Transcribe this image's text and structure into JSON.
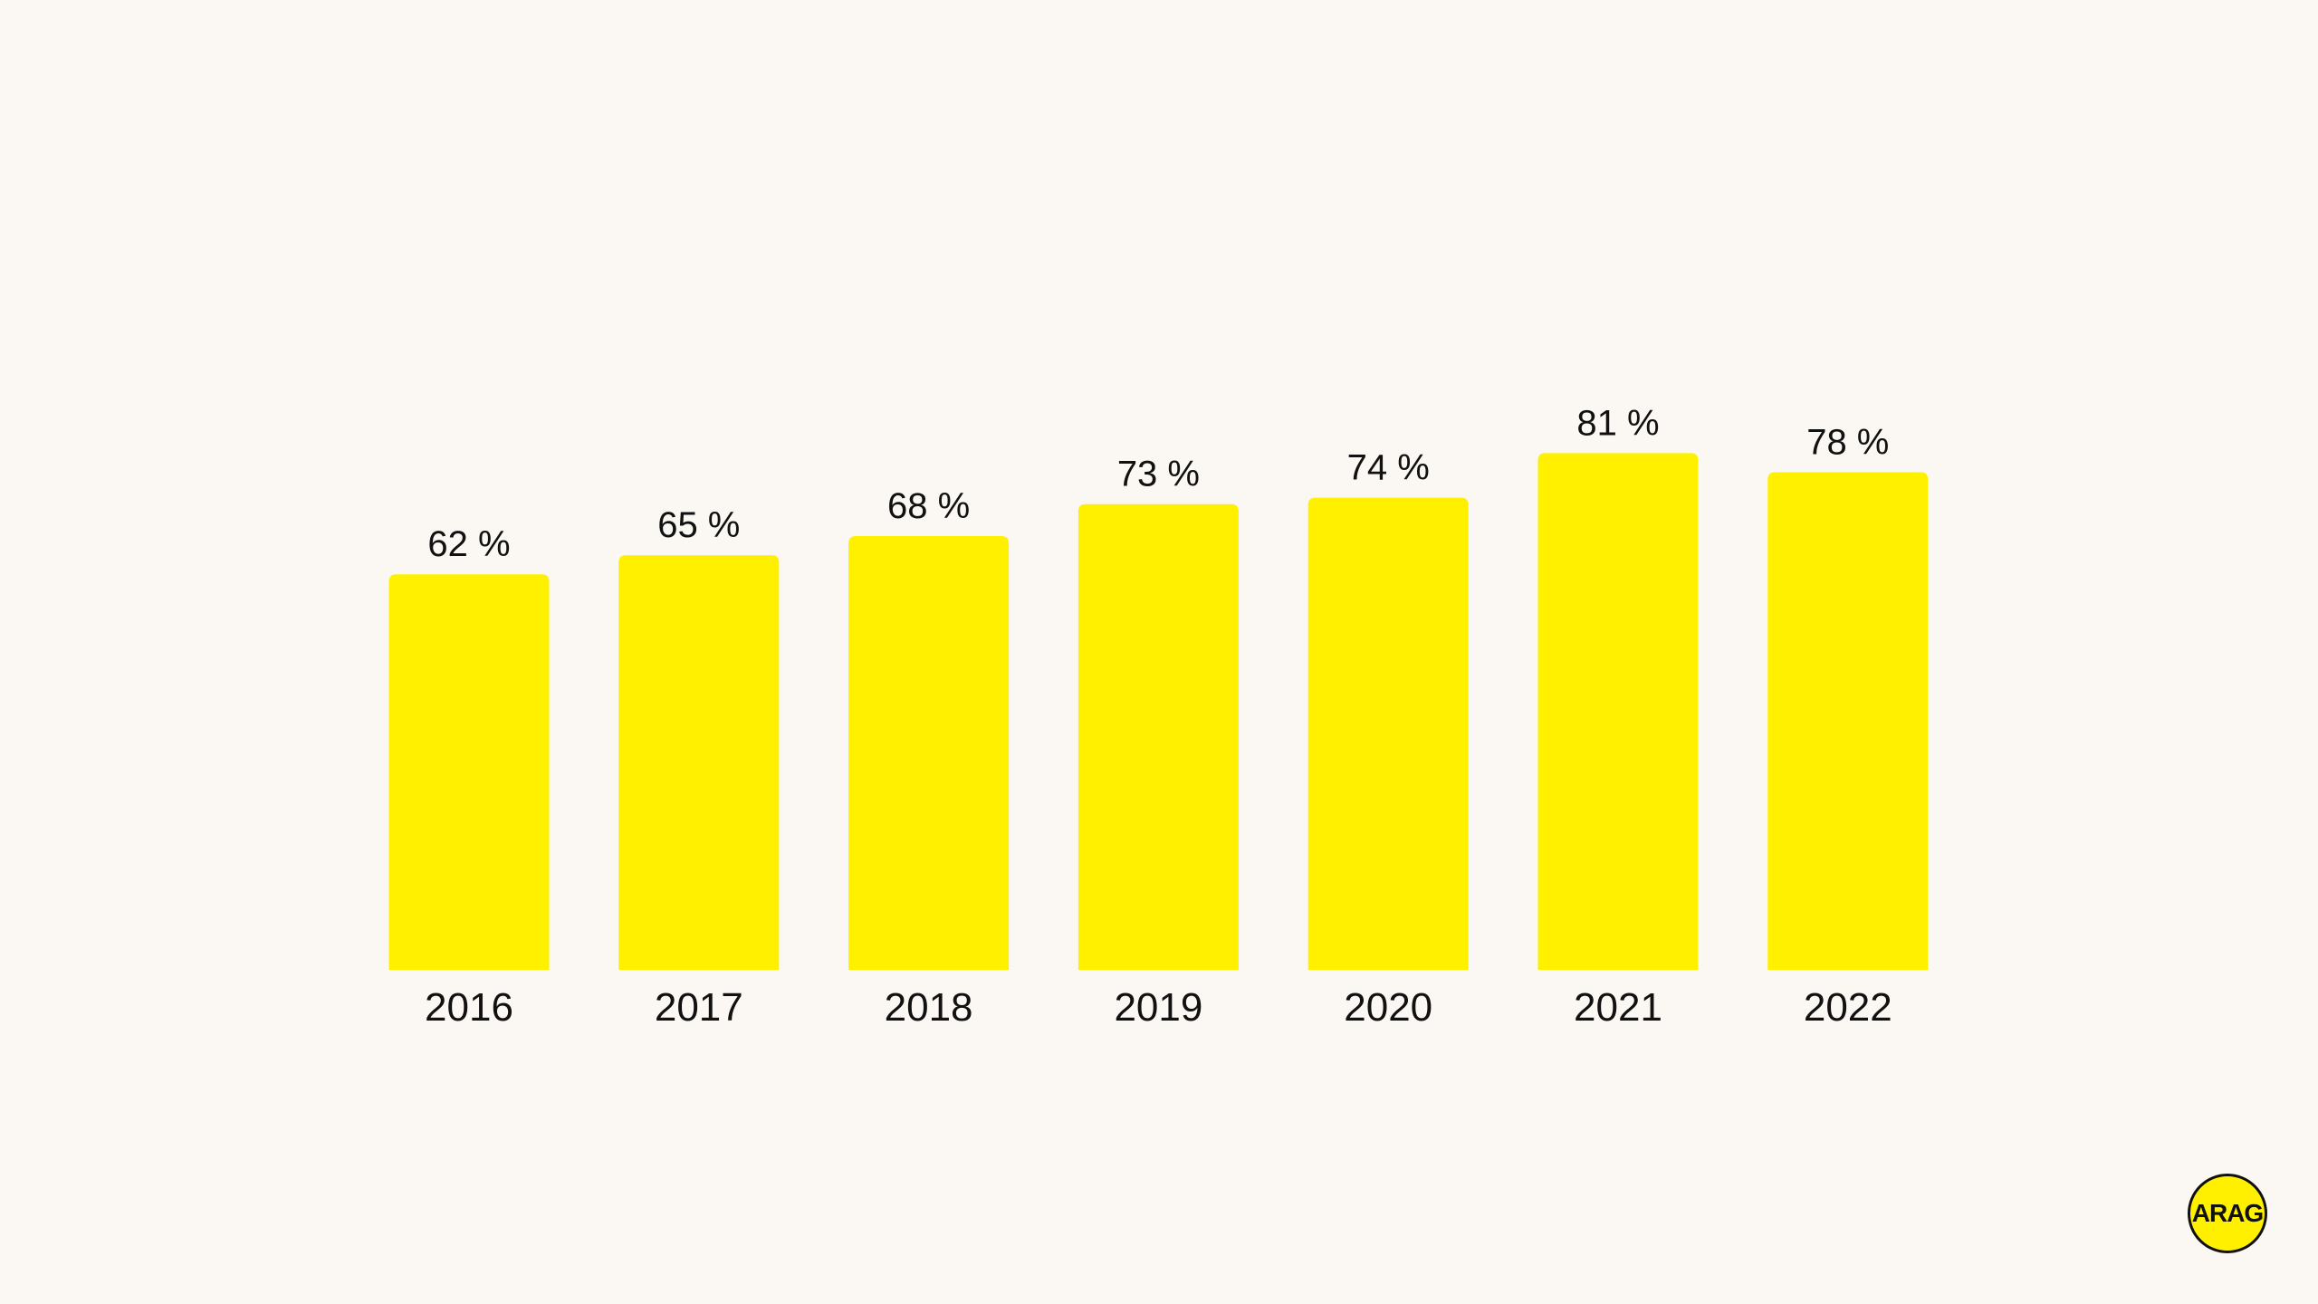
{
  "chart_data": {
    "type": "bar",
    "title": "",
    "xlabel": "",
    "ylabel": "",
    "ylim": [
      0,
      100
    ],
    "categories": [
      "2016",
      "2017",
      "2018",
      "2019",
      "2020",
      "2021",
      "2022"
    ],
    "values": [
      62,
      65,
      68,
      73,
      74,
      81,
      78
    ],
    "value_labels": [
      "62 %",
      "65 %",
      "68 %",
      "73 %",
      "74 %",
      "81 %",
      "78 %"
    ],
    "grid": false,
    "legend": "none",
    "bar_color": "#FFF000",
    "text_color": "#111111",
    "background_color": "#FBF8F3"
  },
  "logo": {
    "text": "ARAG",
    "color": "#FFF000"
  }
}
